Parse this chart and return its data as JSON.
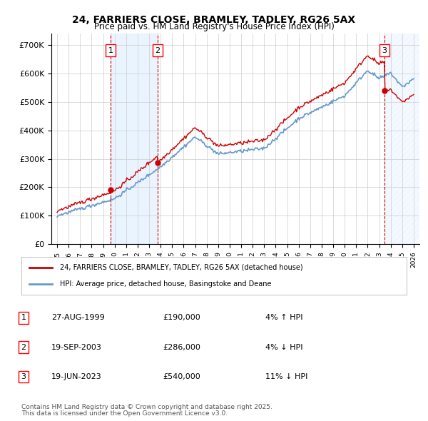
{
  "title": "24, FARRIERS CLOSE, BRAMLEY, TADLEY, RG26 5AX",
  "subtitle": "Price paid vs. HM Land Registry's House Price Index (HPI)",
  "sale1_date": "27-AUG-1999",
  "sale1_price": 190000,
  "sale1_label": "1",
  "sale1_year": 1999.65,
  "sale2_date": "19-SEP-2003",
  "sale2_price": 286000,
  "sale2_label": "2",
  "sale2_year": 2003.72,
  "sale3_date": "19-JUN-2023",
  "sale3_price": 540000,
  "sale3_label": "3",
  "sale3_year": 2023.47,
  "ylim_min": 0,
  "ylim_max": 740000,
  "xlim_min": 1994.5,
  "xlim_max": 2026.5,
  "background_color": "#ffffff",
  "grid_color": "#cccccc",
  "hpi_line_color": "#6699cc",
  "sale_line_color": "#cc0000",
  "sale_dot_color": "#cc0000",
  "dashed_line_color": "#cc0000",
  "shade_color": "#ddeeff",
  "legend1_label": "24, FARRIERS CLOSE, BRAMLEY, TADLEY, RG26 5AX (detached house)",
  "legend2_label": "HPI: Average price, detached house, Basingstoke and Deane",
  "footer1": "Contains HM Land Registry data © Crown copyright and database right 2025.",
  "footer2": "This data is licensed under the Open Government Licence v3.0.",
  "table_rows": [
    {
      "num": "1",
      "date": "27-AUG-1999",
      "price": "£190,000",
      "note": "4% ↑ HPI"
    },
    {
      "num": "2",
      "date": "19-SEP-2003",
      "price": "£286,000",
      "note": "4% ↓ HPI"
    },
    {
      "num": "3",
      "date": "19-JUN-2023",
      "price": "£540,000",
      "note": "11% ↓ HPI"
    }
  ]
}
